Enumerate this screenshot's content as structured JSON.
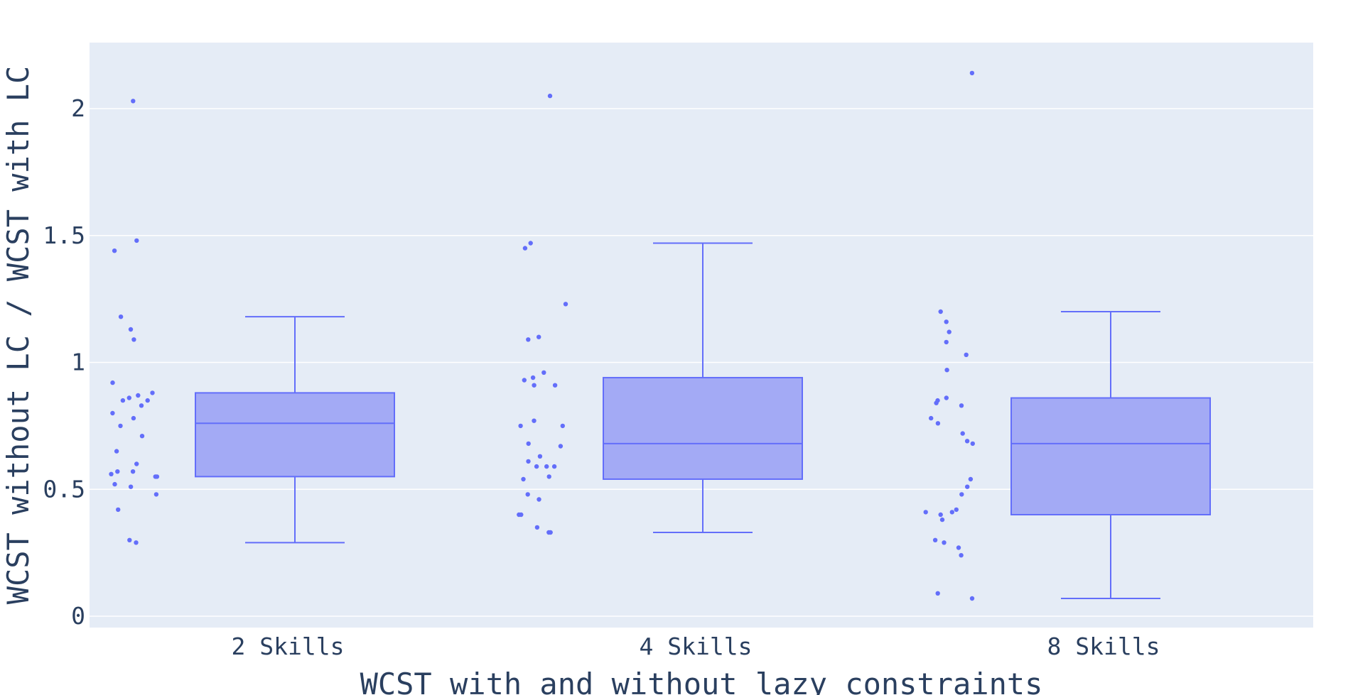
{
  "chart_data": {
    "type": "box",
    "xlabel": "WCST with and without lazy constraints",
    "ylabel": "WCST without LC / WCST with LC",
    "categories": [
      "2 Skills",
      "4 Skills",
      "8 Skills"
    ],
    "ylim": [
      -0.05,
      2.25
    ],
    "yticks": [
      0,
      0.5,
      1,
      1.5,
      2
    ],
    "ytick_labels": [
      "0",
      "0.5",
      "1",
      "1.5",
      "2"
    ],
    "grid": true,
    "colors": {
      "box_fill": "#a3aaf5",
      "box_line": "#636efa",
      "point": "#636efa",
      "plot_bg": "#e5ecf6",
      "grid": "#ffffff",
      "text": "#2a3f5f"
    },
    "boxes": [
      {
        "category": "2 Skills",
        "whisker_low": 0.29,
        "q1": 0.55,
        "median": 0.76,
        "q3": 0.88,
        "whisker_high": 1.18,
        "points": [
          2.03,
          1.48,
          1.44,
          1.18,
          1.13,
          1.09,
          0.92,
          0.88,
          0.87,
          0.86,
          0.85,
          0.85,
          0.83,
          0.8,
          0.78,
          0.75,
          0.71,
          0.65,
          0.6,
          0.57,
          0.57,
          0.56,
          0.55,
          0.55,
          0.52,
          0.51,
          0.48,
          0.42,
          0.3,
          0.29
        ]
      },
      {
        "category": "4 Skills",
        "whisker_low": 0.33,
        "q1": 0.54,
        "median": 0.68,
        "q3": 0.94,
        "whisker_high": 1.47,
        "points": [
          2.05,
          1.47,
          1.45,
          1.23,
          1.1,
          1.09,
          0.96,
          0.94,
          0.93,
          0.91,
          0.91,
          0.77,
          0.75,
          0.75,
          0.68,
          0.67,
          0.63,
          0.61,
          0.59,
          0.59,
          0.59,
          0.55,
          0.54,
          0.48,
          0.46,
          0.4,
          0.4,
          0.35,
          0.33,
          0.33
        ]
      },
      {
        "category": "8 Skills",
        "whisker_low": 0.07,
        "q1": 0.4,
        "median": 0.68,
        "q3": 0.86,
        "whisker_high": 1.2,
        "points": [
          2.14,
          1.2,
          1.16,
          1.12,
          1.08,
          1.03,
          0.97,
          0.86,
          0.85,
          0.84,
          0.83,
          0.78,
          0.76,
          0.72,
          0.69,
          0.68,
          0.54,
          0.51,
          0.48,
          0.42,
          0.41,
          0.41,
          0.4,
          0.38,
          0.3,
          0.29,
          0.27,
          0.24,
          0.09,
          0.07
        ]
      }
    ]
  }
}
